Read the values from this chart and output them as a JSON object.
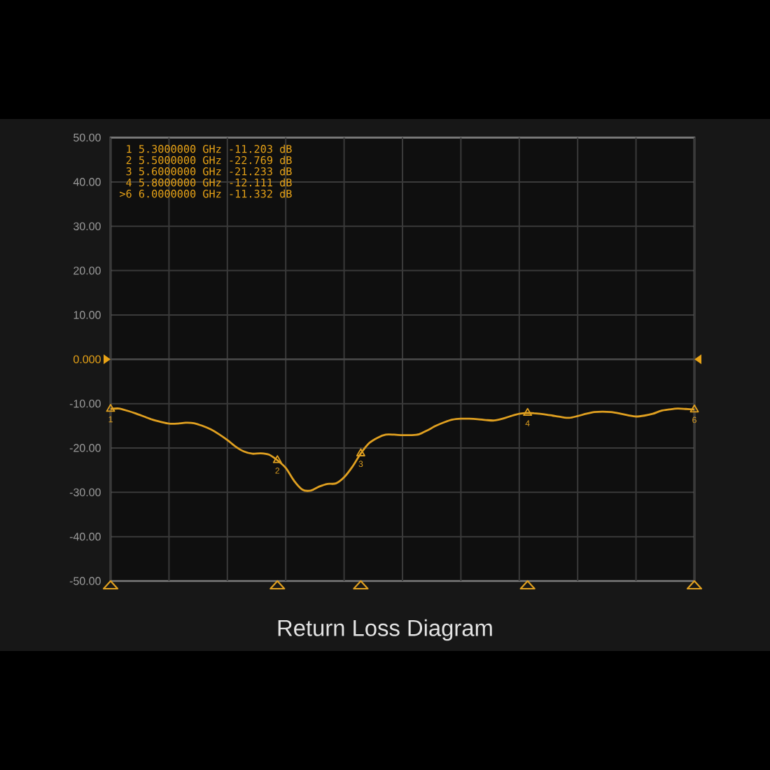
{
  "chart_data": {
    "type": "line",
    "title": "Return Loss Diagram",
    "categories": [
      null,
      null,
      null,
      null,
      null,
      null,
      null,
      null,
      null,
      null,
      null,
      null,
      null,
      null,
      null,
      null,
      null,
      null,
      null,
      null,
      null,
      null,
      null,
      null,
      null,
      null,
      null,
      null,
      null,
      null,
      null,
      null,
      null,
      null,
      null,
      null,
      null,
      null,
      null,
      null,
      null,
      null,
      null,
      null,
      null,
      null,
      null,
      null,
      null,
      null,
      null,
      null,
      null,
      null,
      null,
      null,
      null,
      null,
      null,
      null,
      null,
      null,
      null,
      null,
      null,
      null,
      null,
      null,
      null,
      null,
      null
    ],
    "ylim": [
      -50,
      50
    ],
    "yticks": [
      {
        "value": 50,
        "label": "50.00"
      },
      {
        "value": 40,
        "label": "40.00"
      },
      {
        "value": 30,
        "label": "30.00"
      },
      {
        "value": 20,
        "label": "20.00"
      },
      {
        "value": 10,
        "label": "10.00"
      },
      {
        "value": 0,
        "label": null
      },
      {
        "value": -10,
        "label": "-10.00"
      },
      {
        "value": -20,
        "label": "-20.00"
      },
      {
        "value": -30,
        "label": "-30.00"
      },
      {
        "value": -40,
        "label": "-40.00"
      },
      {
        "value": -50,
        "label": "-50.00"
      }
    ],
    "grid": true,
    "ref_lines": [
      {
        "axis": "y",
        "value": 0,
        "label": "0.000"
      }
    ],
    "series": [
      {
        "color": "#e0a020",
        "values": [
          -11.203,
          -11.1,
          -11.6,
          -12.2,
          -12.9,
          -13.6,
          -14.1,
          -14.5,
          -14.5,
          -14.3,
          -14.4,
          -15.0,
          -15.8,
          -16.9,
          -18.2,
          -19.7,
          -20.8,
          -21.3,
          -21.2,
          -21.5,
          -22.769,
          -24.5,
          -27.4,
          -29.4,
          -29.6,
          -28.7,
          -28.1,
          -28.0,
          -26.6,
          -24.2,
          -21.233,
          -18.9,
          -17.7,
          -17.0,
          -17.0,
          -17.1,
          -17.1,
          -16.9,
          -16.0,
          -15.0,
          -14.2,
          -13.6,
          -13.4,
          -13.4,
          -13.5,
          -13.7,
          -13.8,
          -13.4,
          -12.8,
          -12.3,
          -12.111,
          -12.2,
          -12.4,
          -12.7,
          -13.0,
          -13.2,
          -12.8,
          -12.3,
          -11.9,
          -11.8,
          -11.9,
          -12.2,
          -12.6,
          -12.9,
          -12.7,
          -12.3,
          -11.6,
          -11.3,
          -11.1,
          -11.2,
          -11.332
        ]
      },
      {
        "type": "scatter",
        "marker": "triangle",
        "name": "1",
        "color": "#e0a020",
        "values": [
          -11.203,
          null,
          null,
          null,
          null,
          null,
          null,
          null,
          null,
          null,
          null,
          null,
          null,
          null,
          null,
          null,
          null,
          null,
          null,
          null,
          null,
          null,
          null,
          null,
          null,
          null,
          null,
          null,
          null,
          null,
          null,
          null,
          null,
          null,
          null,
          null,
          null,
          null,
          null,
          null,
          null,
          null,
          null,
          null,
          null,
          null,
          null,
          null,
          null,
          null,
          null,
          null,
          null,
          null,
          null,
          null,
          null,
          null,
          null,
          null,
          null,
          null,
          null,
          null,
          null,
          null,
          null,
          null,
          null,
          null,
          null
        ]
      },
      {
        "type": "scatter",
        "marker": "triangle",
        "name": "2",
        "color": "#e0a020",
        "values": [
          null,
          null,
          null,
          null,
          null,
          null,
          null,
          null,
          null,
          null,
          null,
          null,
          null,
          null,
          null,
          null,
          null,
          null,
          null,
          null,
          -22.769,
          null,
          null,
          null,
          null,
          null,
          null,
          null,
          null,
          null,
          null,
          null,
          null,
          null,
          null,
          null,
          null,
          null,
          null,
          null,
          null,
          null,
          null,
          null,
          null,
          null,
          null,
          null,
          null,
          null,
          null,
          null,
          null,
          null,
          null,
          null,
          null,
          null,
          null,
          null,
          null,
          null,
          null,
          null,
          null,
          null,
          null,
          null,
          null,
          null,
          null
        ]
      },
      {
        "type": "scatter",
        "marker": "triangle",
        "name": "3",
        "color": "#e0a020",
        "values": [
          null,
          null,
          null,
          null,
          null,
          null,
          null,
          null,
          null,
          null,
          null,
          null,
          null,
          null,
          null,
          null,
          null,
          null,
          null,
          null,
          null,
          null,
          null,
          null,
          null,
          null,
          null,
          null,
          null,
          null,
          -21.233,
          null,
          null,
          null,
          null,
          null,
          null,
          null,
          null,
          null,
          null,
          null,
          null,
          null,
          null,
          null,
          null,
          null,
          null,
          null,
          null,
          null,
          null,
          null,
          null,
          null,
          null,
          null,
          null,
          null,
          null,
          null,
          null,
          null,
          null,
          null,
          null,
          null,
          null,
          null,
          null
        ]
      },
      {
        "type": "scatter",
        "marker": "triangle",
        "name": "4",
        "color": "#e0a020",
        "values": [
          null,
          null,
          null,
          null,
          null,
          null,
          null,
          null,
          null,
          null,
          null,
          null,
          null,
          null,
          null,
          null,
          null,
          null,
          null,
          null,
          null,
          null,
          null,
          null,
          null,
          null,
          null,
          null,
          null,
          null,
          null,
          null,
          null,
          null,
          null,
          null,
          null,
          null,
          null,
          null,
          null,
          null,
          null,
          null,
          null,
          null,
          null,
          null,
          null,
          null,
          -12.111,
          null,
          null,
          null,
          null,
          null,
          null,
          null,
          null,
          null,
          null,
          null,
          null,
          null,
          null,
          null,
          null,
          null,
          null,
          null,
          null
        ]
      },
      {
        "type": "scatter",
        "marker": "triangle",
        "name": "6",
        "color": "#e0a020",
        "values": [
          null,
          null,
          null,
          null,
          null,
          null,
          null,
          null,
          null,
          null,
          null,
          null,
          null,
          null,
          null,
          null,
          null,
          null,
          null,
          null,
          null,
          null,
          null,
          null,
          null,
          null,
          null,
          null,
          null,
          null,
          null,
          null,
          null,
          null,
          null,
          null,
          null,
          null,
          null,
          null,
          null,
          null,
          null,
          null,
          null,
          null,
          null,
          null,
          null,
          null,
          null,
          null,
          null,
          null,
          null,
          null,
          null,
          null,
          null,
          null,
          null,
          null,
          null,
          null,
          null,
          null,
          null,
          null,
          null,
          null,
          -11.332
        ]
      }
    ],
    "annotations": [
      "1 5.3000000 GHz -11.203 dB",
      "2 5.5000000 GHz -22.769 dB",
      "3 5.6000000 GHz -21.233 dB",
      "4 5.8000000 GHz -12.111 dB",
      ">6 6.0000000 GHz -11.332 dB"
    ]
  }
}
